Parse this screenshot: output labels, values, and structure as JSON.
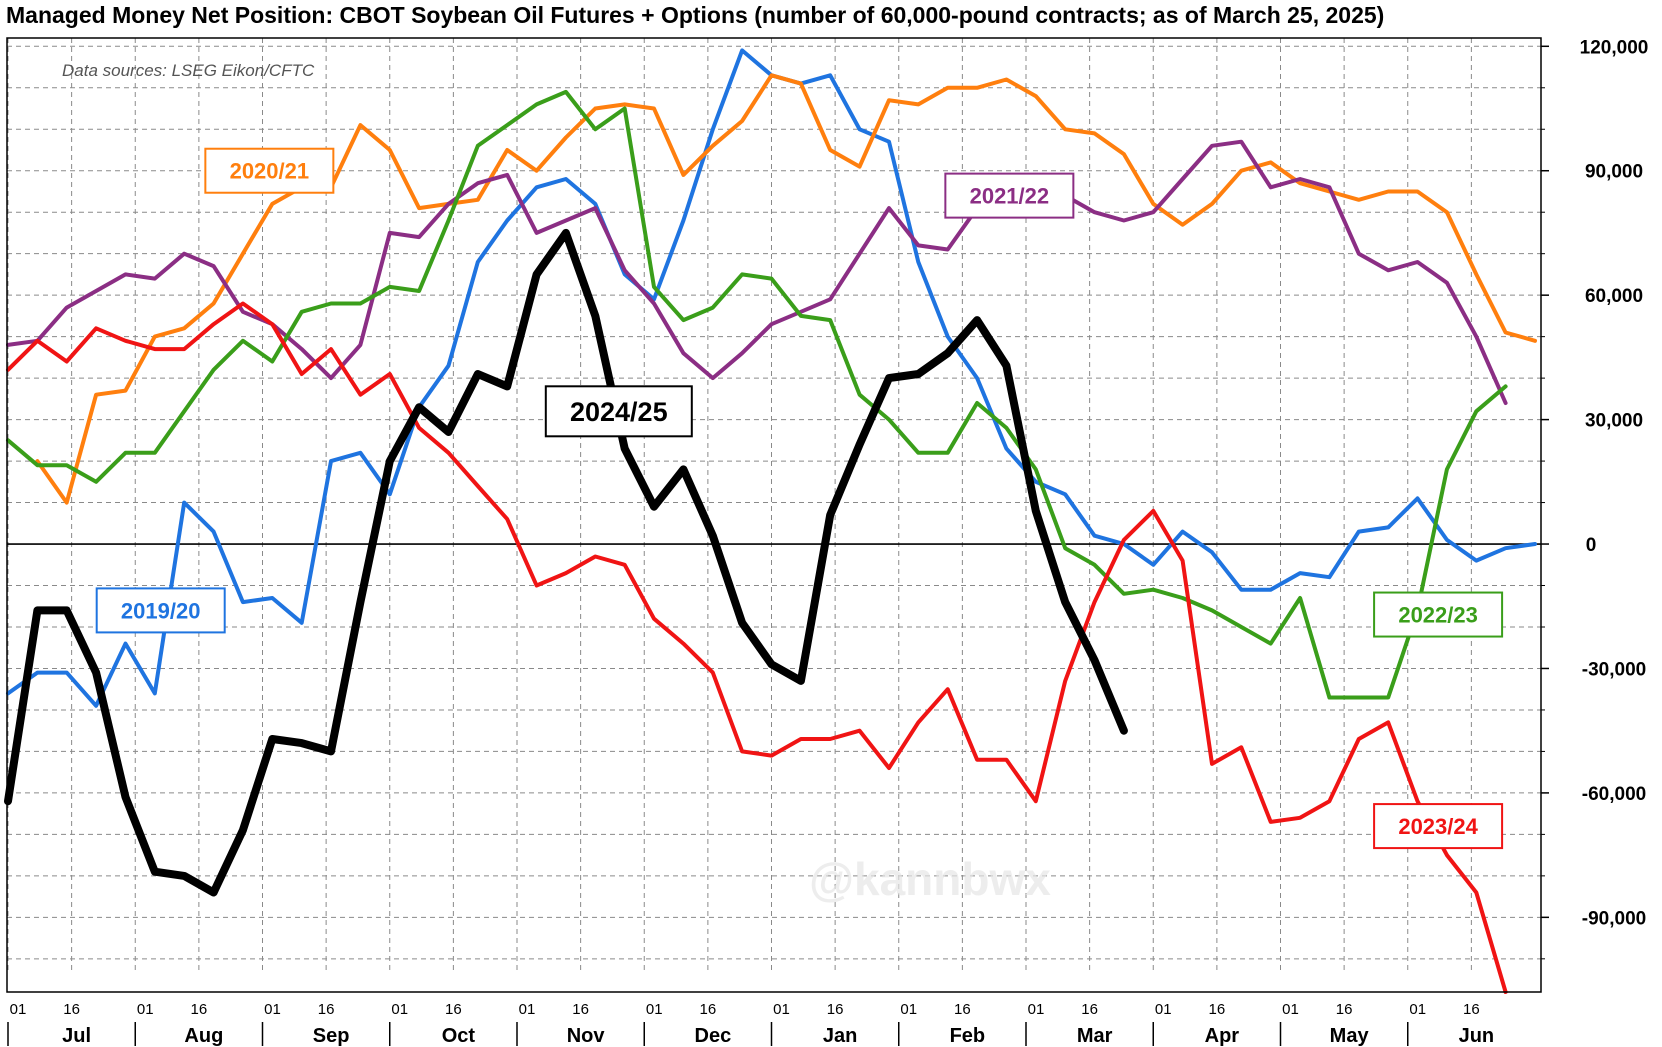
{
  "title": "Managed Money Net Position: CBOT Soybean Oil Futures + Options (number of 60,000-pound contracts; as of March 25, 2025)",
  "source_note": "Data sources: LSEG Eikon/CFTC",
  "watermark": "@kannbwx",
  "chart_data": {
    "type": "line",
    "title": "Managed Money Net Position: CBOT Soybean Oil Futures + Options (number of 60,000-pound contracts; as of March 25, 2025)",
    "xlabel": "",
    "ylabel": "",
    "ylim": [
      -108000,
      122000
    ],
    "yticks": [
      120000,
      90000,
      60000,
      30000,
      0,
      -30000,
      -60000,
      -90000
    ],
    "ytick_labels": [
      "120,000",
      "90,000",
      "60,000",
      "30,000",
      "0",
      "-30,000",
      "-60,000",
      "-90,000"
    ],
    "grid": true,
    "x_unit": "week index from Jul 01 (0) to end of Jun (52)",
    "xlim": [
      0,
      52
    ],
    "month_labels": [
      "Jul",
      "Aug",
      "Sep",
      "Oct",
      "Nov",
      "Dec",
      "Jan",
      "Feb",
      "Mar",
      "Apr",
      "May",
      "Jun"
    ],
    "day_tick_labels": [
      "01",
      "16"
    ],
    "series": [
      {
        "name": "2019/20",
        "color": "#1f74e0",
        "width": 4,
        "label_pos": [
          5.2,
          -16000
        ],
        "points": [
          [
            0,
            -36000
          ],
          [
            1,
            -31000
          ],
          [
            2,
            -31000
          ],
          [
            3,
            -39000
          ],
          [
            4,
            -24000
          ],
          [
            5,
            -36000
          ],
          [
            6,
            10000
          ],
          [
            7,
            3000
          ],
          [
            8,
            -14000
          ],
          [
            9,
            -13000
          ],
          [
            10,
            -19000
          ],
          [
            11,
            20000
          ],
          [
            12,
            22000
          ],
          [
            13,
            12000
          ],
          [
            14,
            33000
          ],
          [
            15,
            43000
          ],
          [
            16,
            68000
          ],
          [
            17,
            78000
          ],
          [
            18,
            86000
          ],
          [
            19,
            88000
          ],
          [
            20,
            82000
          ],
          [
            21,
            65000
          ],
          [
            22,
            59000
          ],
          [
            23,
            78000
          ],
          [
            24,
            100000
          ],
          [
            25,
            119000
          ],
          [
            26,
            113000
          ],
          [
            27,
            111000
          ],
          [
            28,
            113000
          ],
          [
            29,
            100000
          ],
          [
            30,
            97000
          ],
          [
            31,
            68000
          ],
          [
            32,
            50000
          ],
          [
            33,
            40000
          ],
          [
            34,
            23000
          ],
          [
            35,
            15000
          ],
          [
            36,
            12000
          ],
          [
            37,
            2000
          ],
          [
            38,
            0
          ],
          [
            39,
            -5000
          ],
          [
            40,
            3000
          ],
          [
            41,
            -2000
          ],
          [
            42,
            -11000
          ],
          [
            43,
            -11000
          ],
          [
            44,
            -7000
          ],
          [
            45,
            -8000
          ],
          [
            46,
            3000
          ],
          [
            47,
            4000
          ],
          [
            48,
            11000
          ],
          [
            49,
            1000
          ],
          [
            50,
            -4000
          ],
          [
            51,
            -1000
          ],
          [
            52,
            0
          ]
        ]
      },
      {
        "name": "2020/21",
        "color": "#ff7f0e",
        "width": 4,
        "label_pos": [
          8.9,
          90000
        ],
        "points": [
          [
            1,
            20000
          ],
          [
            2,
            10000
          ],
          [
            3,
            36000
          ],
          [
            4,
            37000
          ],
          [
            5,
            50000
          ],
          [
            6,
            52000
          ],
          [
            7,
            58000
          ],
          [
            8,
            70000
          ],
          [
            9,
            82000
          ],
          [
            10,
            86000
          ],
          [
            11,
            86000
          ],
          [
            12,
            101000
          ],
          [
            13,
            95000
          ],
          [
            14,
            81000
          ],
          [
            15,
            82000
          ],
          [
            16,
            83000
          ],
          [
            17,
            95000
          ],
          [
            18,
            90000
          ],
          [
            19,
            98000
          ],
          [
            20,
            105000
          ],
          [
            21,
            106000
          ],
          [
            22,
            105000
          ],
          [
            23,
            89000
          ],
          [
            24,
            96000
          ],
          [
            25,
            102000
          ],
          [
            26,
            113000
          ],
          [
            27,
            111000
          ],
          [
            28,
            95000
          ],
          [
            29,
            91000
          ],
          [
            30,
            107000
          ],
          [
            31,
            106000
          ],
          [
            32,
            110000
          ],
          [
            33,
            110000
          ],
          [
            34,
            112000
          ],
          [
            35,
            108000
          ],
          [
            36,
            100000
          ],
          [
            37,
            99000
          ],
          [
            38,
            94000
          ],
          [
            39,
            82000
          ],
          [
            40,
            77000
          ],
          [
            41,
            82000
          ],
          [
            42,
            90000
          ],
          [
            43,
            92000
          ],
          [
            44,
            87000
          ],
          [
            45,
            85000
          ],
          [
            46,
            83000
          ],
          [
            47,
            85000
          ],
          [
            48,
            85000
          ],
          [
            49,
            80000
          ],
          [
            50,
            65000
          ],
          [
            51,
            51000
          ],
          [
            52,
            49000
          ]
        ]
      },
      {
        "name": "2021/22",
        "color": "#8b2e84",
        "width": 4,
        "label_pos": [
          34.1,
          84000
        ],
        "points": [
          [
            0,
            48000
          ],
          [
            1,
            49000
          ],
          [
            2,
            57000
          ],
          [
            3,
            61000
          ],
          [
            4,
            65000
          ],
          [
            5,
            64000
          ],
          [
            6,
            70000
          ],
          [
            7,
            67000
          ],
          [
            8,
            56000
          ],
          [
            9,
            53000
          ],
          [
            10,
            47000
          ],
          [
            11,
            40000
          ],
          [
            12,
            48000
          ],
          [
            13,
            75000
          ],
          [
            14,
            74000
          ],
          [
            15,
            82000
          ],
          [
            16,
            87000
          ],
          [
            17,
            89000
          ],
          [
            18,
            75000
          ],
          [
            19,
            78000
          ],
          [
            20,
            81000
          ],
          [
            21,
            66000
          ],
          [
            22,
            58000
          ],
          [
            23,
            46000
          ],
          [
            24,
            40000
          ],
          [
            25,
            46000
          ],
          [
            26,
            53000
          ],
          [
            27,
            56000
          ],
          [
            28,
            59000
          ],
          [
            29,
            70000
          ],
          [
            30,
            81000
          ],
          [
            31,
            72000
          ],
          [
            32,
            71000
          ],
          [
            33,
            81000
          ],
          [
            34,
            86000
          ],
          [
            35,
            89000
          ],
          [
            36,
            84000
          ],
          [
            37,
            80000
          ],
          [
            38,
            78000
          ],
          [
            39,
            80000
          ],
          [
            40,
            88000
          ],
          [
            41,
            96000
          ],
          [
            42,
            97000
          ],
          [
            43,
            86000
          ],
          [
            44,
            88000
          ],
          [
            45,
            86000
          ],
          [
            46,
            70000
          ],
          [
            47,
            66000
          ],
          [
            48,
            68000
          ],
          [
            49,
            63000
          ],
          [
            50,
            50000
          ],
          [
            51,
            34000
          ]
        ]
      },
      {
        "name": "2022/23",
        "color": "#3a9e1a",
        "width": 4,
        "label_pos": [
          48.7,
          -17000
        ],
        "points": [
          [
            0,
            25000
          ],
          [
            1,
            19000
          ],
          [
            2,
            19000
          ],
          [
            3,
            15000
          ],
          [
            4,
            22000
          ],
          [
            5,
            22000
          ],
          [
            6,
            32000
          ],
          [
            7,
            42000
          ],
          [
            8,
            49000
          ],
          [
            9,
            44000
          ],
          [
            10,
            56000
          ],
          [
            11,
            58000
          ],
          [
            12,
            58000
          ],
          [
            13,
            62000
          ],
          [
            14,
            61000
          ],
          [
            15,
            78000
          ],
          [
            16,
            96000
          ],
          [
            17,
            101000
          ],
          [
            18,
            106000
          ],
          [
            19,
            109000
          ],
          [
            20,
            100000
          ],
          [
            21,
            105000
          ],
          [
            22,
            62000
          ],
          [
            23,
            54000
          ],
          [
            24,
            57000
          ],
          [
            25,
            65000
          ],
          [
            26,
            64000
          ],
          [
            27,
            55000
          ],
          [
            28,
            54000
          ],
          [
            29,
            36000
          ],
          [
            30,
            30000
          ],
          [
            31,
            22000
          ],
          [
            32,
            22000
          ],
          [
            33,
            34000
          ],
          [
            34,
            28000
          ],
          [
            35,
            18000
          ],
          [
            36,
            -1000
          ],
          [
            37,
            -5000
          ],
          [
            38,
            -12000
          ],
          [
            39,
            -11000
          ],
          [
            40,
            -13000
          ],
          [
            41,
            -16000
          ],
          [
            42,
            -20000
          ],
          [
            43,
            -24000
          ],
          [
            44,
            -13000
          ],
          [
            45,
            -37000
          ],
          [
            46,
            -37000
          ],
          [
            47,
            -37000
          ],
          [
            48,
            -16000
          ],
          [
            49,
            18000
          ],
          [
            50,
            32000
          ],
          [
            51,
            38000
          ]
        ]
      },
      {
        "name": "2023/24",
        "color": "#f01414",
        "width": 4,
        "label_pos": [
          48.7,
          -68000
        ],
        "points": [
          [
            0,
            42000
          ],
          [
            1,
            49000
          ],
          [
            2,
            44000
          ],
          [
            3,
            52000
          ],
          [
            4,
            49000
          ],
          [
            5,
            47000
          ],
          [
            6,
            47000
          ],
          [
            7,
            53000
          ],
          [
            8,
            58000
          ],
          [
            9,
            53000
          ],
          [
            10,
            41000
          ],
          [
            11,
            47000
          ],
          [
            12,
            36000
          ],
          [
            13,
            41000
          ],
          [
            14,
            28000
          ],
          [
            15,
            22000
          ],
          [
            16,
            14000
          ],
          [
            17,
            6000
          ],
          [
            18,
            -10000
          ],
          [
            19,
            -7000
          ],
          [
            20,
            -3000
          ],
          [
            21,
            -5000
          ],
          [
            22,
            -18000
          ],
          [
            23,
            -24000
          ],
          [
            24,
            -31000
          ],
          [
            25,
            -50000
          ],
          [
            26,
            -51000
          ],
          [
            27,
            -47000
          ],
          [
            28,
            -47000
          ],
          [
            29,
            -45000
          ],
          [
            30,
            -54000
          ],
          [
            31,
            -43000
          ],
          [
            32,
            -35000
          ],
          [
            33,
            -52000
          ],
          [
            34,
            -52000
          ],
          [
            35,
            -62000
          ],
          [
            36,
            -33000
          ],
          [
            37,
            -14000
          ],
          [
            38,
            1000
          ],
          [
            39,
            8000
          ],
          [
            40,
            -4000
          ],
          [
            41,
            -53000
          ],
          [
            42,
            -49000
          ],
          [
            43,
            -67000
          ],
          [
            44,
            -66000
          ],
          [
            45,
            -62000
          ],
          [
            46,
            -47000
          ],
          [
            47,
            -43000
          ],
          [
            48,
            -62000
          ],
          [
            49,
            -75000
          ],
          [
            50,
            -84000
          ],
          [
            51,
            -108000
          ]
        ]
      },
      {
        "name": "2024/25",
        "color": "#000000",
        "width": 8,
        "label_pos": [
          20.8,
          32000
        ],
        "points": [
          [
            0,
            -62000
          ],
          [
            1,
            -16000
          ],
          [
            2,
            -16000
          ],
          [
            3,
            -31000
          ],
          [
            4,
            -61000
          ],
          [
            5,
            -79000
          ],
          [
            6,
            -80000
          ],
          [
            7,
            -84000
          ],
          [
            8,
            -69000
          ],
          [
            9,
            -47000
          ],
          [
            10,
            -48000
          ],
          [
            11,
            -50000
          ],
          [
            12,
            -14000
          ],
          [
            13,
            20000
          ],
          [
            14,
            33000
          ],
          [
            15,
            27000
          ],
          [
            16,
            41000
          ],
          [
            17,
            38000
          ],
          [
            18,
            65000
          ],
          [
            19,
            75000
          ],
          [
            20,
            55000
          ],
          [
            21,
            23000
          ],
          [
            22,
            9000
          ],
          [
            23,
            18000
          ],
          [
            24,
            2000
          ],
          [
            25,
            -19000
          ],
          [
            26,
            -29000
          ],
          [
            27,
            -33000
          ],
          [
            28,
            7000
          ],
          [
            29,
            24000
          ],
          [
            30,
            40000
          ],
          [
            31,
            41000
          ],
          [
            32,
            46000
          ],
          [
            33,
            54000
          ],
          [
            34,
            43000
          ],
          [
            35,
            8000
          ],
          [
            36,
            -14000
          ],
          [
            37,
            -28000
          ],
          [
            38,
            -45000
          ]
        ]
      }
    ]
  }
}
